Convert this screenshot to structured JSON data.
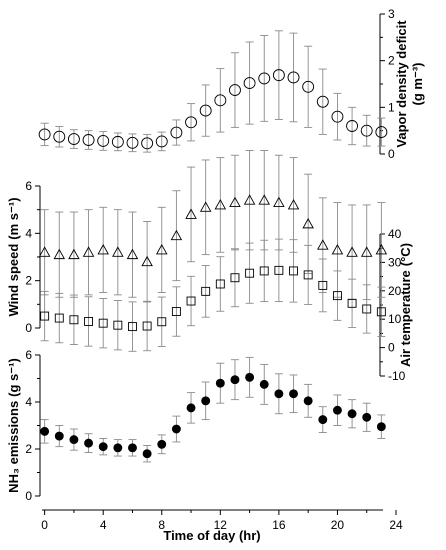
{
  "chart_data": [
    {
      "type": "scatter",
      "panel": "vapor-density-deficit",
      "ylabel": "Vapor density deficit",
      "yunit": "(g m⁻³)",
      "ylim": [
        0,
        3
      ],
      "yticks": [
        0,
        1,
        2,
        3
      ],
      "axis_side": "right",
      "marker": "circle-open",
      "x": [
        0,
        1,
        2,
        3,
        4,
        5,
        6,
        7,
        8,
        9,
        10,
        11,
        12,
        13,
        14,
        15,
        16,
        17,
        18,
        19,
        20,
        21,
        22,
        23
      ],
      "y": [
        0.42,
        0.37,
        0.32,
        0.3,
        0.28,
        0.26,
        0.24,
        0.23,
        0.27,
        0.46,
        0.68,
        0.93,
        1.15,
        1.37,
        1.52,
        1.62,
        1.69,
        1.64,
        1.44,
        1.12,
        0.8,
        0.6,
        0.5,
        0.47
      ],
      "yerr": [
        0.24,
        0.22,
        0.2,
        0.2,
        0.2,
        0.19,
        0.19,
        0.19,
        0.2,
        0.27,
        0.4,
        0.55,
        0.68,
        0.8,
        0.88,
        0.92,
        0.95,
        0.95,
        0.87,
        0.7,
        0.5,
        0.4,
        0.33,
        0.3
      ]
    },
    {
      "type": "scatter",
      "panel": "wind-speed",
      "ylabel": "Wind speed",
      "yunit": "(m s⁻¹)",
      "ylim": [
        0,
        6
      ],
      "yticks": [
        0,
        2,
        4,
        6
      ],
      "axis_side": "left",
      "marker": "triangle-open",
      "x": [
        0,
        1,
        2,
        3,
        4,
        5,
        6,
        7,
        8,
        9,
        10,
        11,
        12,
        13,
        14,
        15,
        16,
        17,
        18,
        19,
        20,
        21,
        22,
        23
      ],
      "y": [
        3.2,
        3.1,
        3.1,
        3.2,
        3.3,
        3.2,
        3.1,
        2.8,
        3.3,
        3.9,
        4.8,
        5.1,
        5.2,
        5.3,
        5.4,
        5.4,
        5.3,
        5.2,
        4.4,
        3.5,
        3.3,
        3.2,
        3.2,
        3.3
      ],
      "yerr": [
        1.8,
        1.8,
        1.8,
        1.8,
        1.8,
        1.8,
        1.8,
        1.7,
        1.8,
        1.9,
        2.0,
        2.0,
        2.0,
        2.0,
        2.1,
        2.1,
        2.0,
        2.0,
        2.1,
        2.0,
        2.0,
        2.0,
        2.0,
        2.0
      ]
    },
    {
      "type": "scatter",
      "panel": "air-temperature",
      "ylabel": "Air temperature",
      "yunit": "(°C)",
      "ylim": [
        -10,
        40
      ],
      "yticks": [
        -10,
        0,
        10,
        20,
        30,
        40
      ],
      "axis_side": "right",
      "marker": "square-open",
      "x": [
        0,
        1,
        2,
        3,
        4,
        5,
        6,
        7,
        8,
        9,
        10,
        11,
        12,
        13,
        14,
        15,
        16,
        17,
        18,
        19,
        20,
        21,
        22,
        23
      ],
      "y": [
        11.1,
        10.4,
        9.8,
        9.2,
        8.6,
        7.9,
        7.4,
        7.6,
        9.1,
        12.7,
        16.4,
        19.8,
        22.4,
        24.6,
        26.2,
        27.0,
        27.2,
        27.0,
        25.6,
        21.9,
        18.3,
        15.6,
        13.6,
        12.6
      ],
      "yerr": [
        8.7,
        8.7,
        8.7,
        8.7,
        8.7,
        8.7,
        8.7,
        8.7,
        8.7,
        8.7,
        8.7,
        9.1,
        9.6,
        10.2,
        10.6,
        10.8,
        11.0,
        11.0,
        10.4,
        9.3,
        8.7,
        8.5,
        8.5,
        8.7
      ]
    },
    {
      "type": "scatter",
      "panel": "nh3-emissions",
      "ylabel": "NH₃ emissions",
      "yunit": "(g s⁻¹)",
      "ylim": [
        0,
        6
      ],
      "yticks": [
        0,
        2,
        4,
        6
      ],
      "axis_side": "left",
      "marker": "circle-filled",
      "x": [
        0,
        1,
        2,
        3,
        4,
        5,
        6,
        7,
        8,
        9,
        10,
        11,
        12,
        13,
        14,
        15,
        16,
        17,
        18,
        19,
        20,
        21,
        22,
        23
      ],
      "y": [
        2.75,
        2.55,
        2.4,
        2.25,
        2.1,
        2.05,
        2.05,
        1.8,
        2.2,
        2.85,
        3.75,
        4.05,
        4.8,
        4.95,
        5.05,
        4.75,
        4.35,
        4.35,
        4.05,
        3.25,
        3.65,
        3.5,
        3.35,
        2.95
      ],
      "yerr": [
        0.5,
        0.45,
        0.45,
        0.4,
        0.35,
        0.35,
        0.35,
        0.35,
        0.4,
        0.55,
        0.65,
        0.8,
        0.85,
        0.85,
        0.85,
        0.85,
        0.85,
        0.8,
        0.7,
        0.55,
        0.65,
        0.6,
        0.6,
        0.5
      ]
    }
  ],
  "xaxis": {
    "label": "Time of day (hr)",
    "xlim": [
      -1,
      24
    ],
    "ticks": [
      "0",
      "4",
      "8",
      "12",
      "16",
      "20",
      "24"
    ]
  }
}
